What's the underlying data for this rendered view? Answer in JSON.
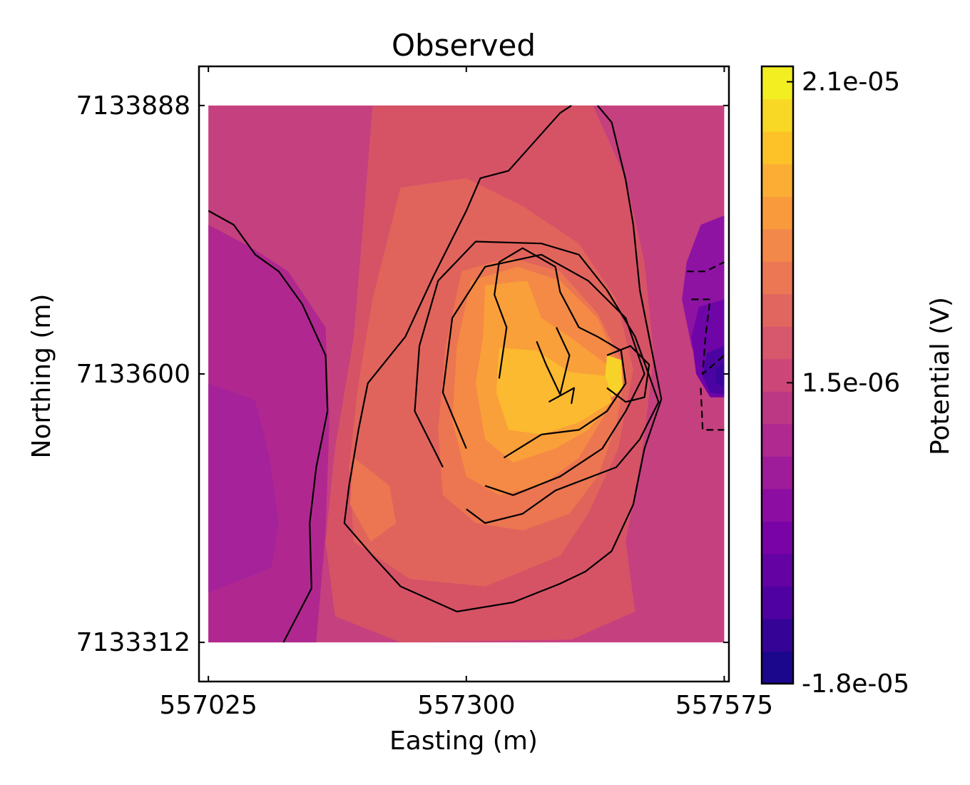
{
  "chart_data": {
    "type": "heatmap",
    "subtype": "filled-contour",
    "title": "Observed",
    "xlabel": "Easting (m)",
    "ylabel": "Northing (m)",
    "xlim": [
      557015,
      557580
    ],
    "ylim": [
      7133270,
      7133930
    ],
    "data_extent": {
      "x": [
        557025,
        557575
      ],
      "y": [
        7133312,
        7133888
      ]
    },
    "x_ticks": [
      {
        "value": 557025,
        "label": "557025"
      },
      {
        "value": 557300,
        "label": "557300"
      },
      {
        "value": 557575,
        "label": "557575"
      }
    ],
    "y_ticks": [
      {
        "value": 7133312,
        "label": "7133312"
      },
      {
        "value": 7133600,
        "label": "7133600"
      },
      {
        "value": 7133888,
        "label": "7133888"
      }
    ],
    "colorbar": {
      "label": "Potential (V)",
      "colormap": "plasma",
      "min": -1.8e-05,
      "max": 2.2e-05,
      "n_levels": 19,
      "ticks": [
        {
          "value": 2.1e-05,
          "label": "2.1e-05"
        },
        {
          "value": 1.5e-06,
          "label": "1.5e-06"
        },
        {
          "value": -1.8e-05,
          "label": "-1.8e-05"
        }
      ]
    },
    "background_level_color": "#c5407e",
    "filled_regions": [
      {
        "level": 0,
        "color": "#b0288f",
        "points": [
          [
            557025,
            7133760
          ],
          [
            557072,
            7133735
          ],
          [
            557110,
            7133710
          ],
          [
            557150,
            7133650
          ],
          [
            557154,
            7133550
          ],
          [
            557150,
            7133430
          ],
          [
            557140,
            7133312
          ],
          [
            557025,
            7133312
          ]
        ]
      },
      {
        "level": 0,
        "color": "#a6229a",
        "points": [
          [
            557025,
            7133590
          ],
          [
            557075,
            7133572
          ],
          [
            557090,
            7133512
          ],
          [
            557100,
            7133440
          ],
          [
            557092,
            7133392
          ],
          [
            557025,
            7133365
          ]
        ]
      },
      {
        "level": 3,
        "color": "#d65366",
        "points": [
          [
            557200,
            7133888
          ],
          [
            557435,
            7133888
          ],
          [
            557470,
            7133810
          ],
          [
            557490,
            7133720
          ],
          [
            557500,
            7133620
          ],
          [
            557488,
            7133520
          ],
          [
            557470,
            7133420
          ],
          [
            557480,
            7133345
          ],
          [
            557412,
            7133315
          ],
          [
            557230,
            7133312
          ],
          [
            557160,
            7133340
          ],
          [
            557150,
            7133420
          ],
          [
            557160,
            7133520
          ],
          [
            557180,
            7133640
          ],
          [
            557190,
            7133760
          ]
        ]
      },
      {
        "level": 4,
        "color": "#e1645c",
        "points": [
          [
            557230,
            7133800
          ],
          [
            557300,
            7133810
          ],
          [
            557360,
            7133780
          ],
          [
            557420,
            7133740
          ],
          [
            557460,
            7133680
          ],
          [
            557478,
            7133605
          ],
          [
            557462,
            7133520
          ],
          [
            557430,
            7133450
          ],
          [
            557400,
            7133405
          ],
          [
            557320,
            7133372
          ],
          [
            557240,
            7133380
          ],
          [
            557180,
            7133420
          ],
          [
            557175,
            7133500
          ],
          [
            557185,
            7133590
          ],
          [
            557200,
            7133680
          ]
        ]
      },
      {
        "level": 5,
        "color": "#eb7651",
        "points": [
          [
            557295,
            7133710
          ],
          [
            557345,
            7133725
          ],
          [
            557400,
            7133710
          ],
          [
            557440,
            7133665
          ],
          [
            557470,
            7133605
          ],
          [
            557460,
            7133545
          ],
          [
            557440,
            7133490
          ],
          [
            557410,
            7133450
          ],
          [
            557360,
            7133432
          ],
          [
            557310,
            7133440
          ],
          [
            557275,
            7133470
          ],
          [
            557270,
            7133540
          ],
          [
            557278,
            7133630
          ]
        ]
      },
      {
        "level": 5,
        "color": "#eb7651",
        "points": [
          [
            557180,
            7133510
          ],
          [
            557218,
            7133480
          ],
          [
            557225,
            7133440
          ],
          [
            557198,
            7133420
          ],
          [
            557176,
            7133460
          ]
        ]
      },
      {
        "level": 6,
        "color": "#f48a45",
        "points": [
          [
            557305,
            7133700
          ],
          [
            557355,
            7133715
          ],
          [
            557400,
            7133700
          ],
          [
            557440,
            7133660
          ],
          [
            557462,
            7133610
          ],
          [
            557450,
            7133560
          ],
          [
            557420,
            7133510
          ],
          [
            557380,
            7133480
          ],
          [
            557335,
            7133470
          ],
          [
            557300,
            7133490
          ],
          [
            557285,
            7133550
          ],
          [
            557290,
            7133630
          ]
        ]
      },
      {
        "level": 7,
        "color": "#f9a03a",
        "points": [
          [
            557320,
            7133695
          ],
          [
            557365,
            7133700
          ],
          [
            557380,
            7133660
          ],
          [
            557410,
            7133640
          ],
          [
            557450,
            7133610
          ],
          [
            557455,
            7133570
          ],
          [
            557430,
            7133540
          ],
          [
            557395,
            7133520
          ],
          [
            557350,
            7133505
          ],
          [
            557320,
            7133530
          ],
          [
            557310,
            7133590
          ],
          [
            557318,
            7133640
          ]
        ]
      },
      {
        "level": 8,
        "color": "#fbba30",
        "points": [
          [
            557335,
            7133628
          ],
          [
            557375,
            7133625
          ],
          [
            557410,
            7133602
          ],
          [
            557448,
            7133598
          ],
          [
            557455,
            7133570
          ],
          [
            557420,
            7133548
          ],
          [
            557380,
            7133535
          ],
          [
            557345,
            7133540
          ],
          [
            557332,
            7133580
          ]
        ]
      },
      {
        "level": 9,
        "color": "#f7d229",
        "points": [
          [
            557450,
            7133620
          ],
          [
            557465,
            7133615
          ],
          [
            557467,
            7133585
          ],
          [
            557455,
            7133575
          ],
          [
            557448,
            7133598
          ]
        ]
      },
      {
        "level": 1,
        "color": "#8e13a3",
        "points": [
          [
            557575,
            7133770
          ],
          [
            557550,
            7133760
          ],
          [
            557535,
            7133720
          ],
          [
            557530,
            7133680
          ],
          [
            557540,
            7133630
          ],
          [
            557555,
            7133590
          ],
          [
            557575,
            7133580
          ]
        ]
      },
      {
        "level": 0,
        "color": "#6f04a7",
        "points": [
          [
            557575,
            7133680
          ],
          [
            557548,
            7133672
          ],
          [
            557540,
            7133640
          ],
          [
            557545,
            7133600
          ],
          [
            557560,
            7133575
          ],
          [
            557575,
            7133575
          ]
        ]
      },
      {
        "level": 0,
        "color": "#4b03a1",
        "points": [
          [
            557575,
            7133630
          ],
          [
            557556,
            7133622
          ],
          [
            557552,
            7133598
          ],
          [
            557560,
            7133580
          ],
          [
            557575,
            7133578
          ]
        ]
      },
      {
        "level": 0,
        "color": "#3a049a",
        "points": [
          [
            557575,
            7133612
          ],
          [
            557566,
            7133605
          ],
          [
            557566,
            7133590
          ],
          [
            557575,
            7133586
          ]
        ]
      }
    ],
    "contour_lines": [
      {
        "style": "solid",
        "points": [
          [
            557025,
            7133775
          ],
          [
            557052,
            7133760
          ],
          [
            557075,
            7133728
          ],
          [
            557100,
            7133710
          ],
          [
            557125,
            7133675
          ],
          [
            557150,
            7133620
          ],
          [
            557152,
            7133560
          ],
          [
            557140,
            7133500
          ],
          [
            557133,
            7133440
          ],
          [
            557135,
            7133370
          ],
          [
            557105,
            7133312
          ]
        ]
      },
      {
        "style": "solid",
        "points": [
          [
            557175,
            7133480
          ],
          [
            557170,
            7133440
          ],
          [
            557200,
            7133405
          ],
          [
            557230,
            7133372
          ],
          [
            557290,
            7133345
          ],
          [
            557350,
            7133355
          ],
          [
            557400,
            7133375
          ],
          [
            557427,
            7133388
          ],
          [
            557455,
            7133410
          ],
          [
            557478,
            7133460
          ],
          [
            557490,
            7133520
          ],
          [
            557508,
            7133573
          ],
          [
            557485,
            7133690
          ],
          [
            557478,
            7133760
          ],
          [
            557470,
            7133808
          ],
          [
            557455,
            7133870
          ],
          [
            557440,
            7133888
          ]
        ]
      },
      {
        "style": "solid",
        "points": [
          [
            557175,
            7133480
          ],
          [
            557185,
            7133540
          ],
          [
            557195,
            7133590
          ],
          [
            557235,
            7133640
          ],
          [
            557265,
            7133705
          ],
          [
            557300,
            7133775
          ],
          [
            557315,
            7133810
          ],
          [
            557345,
            7133818
          ],
          [
            557400,
            7133880
          ],
          [
            557412,
            7133888
          ]
        ]
      },
      {
        "style": "solid",
        "points": [
          [
            557300,
            7133455
          ],
          [
            557320,
            7133440
          ],
          [
            557360,
            7133450
          ],
          [
            557395,
            7133475
          ],
          [
            557460,
            7133500
          ],
          [
            557485,
            7133530
          ],
          [
            557505,
            7133570
          ],
          [
            557480,
            7133640
          ],
          [
            557450,
            7133690
          ],
          [
            557420,
            7133728
          ],
          [
            557380,
            7133740
          ],
          [
            557310,
            7133742
          ],
          [
            557270,
            7133700
          ],
          [
            557250,
            7133630
          ],
          [
            557245,
            7133560
          ],
          [
            557275,
            7133500
          ]
        ]
      },
      {
        "style": "solid",
        "points": [
          [
            557320,
            7133480
          ],
          [
            557350,
            7133470
          ],
          [
            557400,
            7133490
          ],
          [
            557445,
            7133520
          ],
          [
            557470,
            7133560
          ],
          [
            557490,
            7133600
          ],
          [
            557470,
            7133660
          ],
          [
            557430,
            7133700
          ],
          [
            557380,
            7133728
          ],
          [
            557320,
            7133715
          ],
          [
            557285,
            7133660
          ],
          [
            557275,
            7133580
          ],
          [
            557300,
            7133520
          ]
        ]
      },
      {
        "style": "solid",
        "points": [
          [
            557340,
            7133510
          ],
          [
            557380,
            7133535
          ],
          [
            557420,
            7133540
          ],
          [
            557450,
            7133560
          ],
          [
            557470,
            7133590
          ],
          [
            557465,
            7133625
          ],
          [
            557440,
            7133640
          ],
          [
            557420,
            7133650
          ],
          [
            557400,
            7133688
          ],
          [
            557395,
            7133715
          ],
          [
            557360,
            7133735
          ],
          [
            557335,
            7133720
          ],
          [
            557330,
            7133685
          ],
          [
            557343,
            7133650
          ],
          [
            557335,
            7133595
          ]
        ]
      },
      {
        "style": "solid",
        "points": [
          [
            557375,
            7133635
          ],
          [
            557385,
            7133610
          ],
          [
            557400,
            7133578
          ],
          [
            557410,
            7133620
          ],
          [
            557396,
            7133650
          ]
        ]
      },
      {
        "style": "solid",
        "points": [
          [
            557450,
            7133585
          ],
          [
            557470,
            7133570
          ],
          [
            557490,
            7133575
          ],
          [
            557495,
            7133610
          ],
          [
            557475,
            7133630
          ],
          [
            557450,
            7133620
          ]
        ]
      },
      {
        "style": "solid",
        "points": [
          [
            557388,
            7133570
          ],
          [
            557415,
            7133585
          ],
          [
            557412,
            7133568
          ]
        ]
      },
      {
        "style": "dashed",
        "points": [
          [
            557535,
            7133710
          ],
          [
            557555,
            7133710
          ],
          [
            557575,
            7133720
          ]
        ]
      },
      {
        "style": "dashed",
        "points": [
          [
            557540,
            7133680
          ],
          [
            557560,
            7133680
          ],
          [
            557555,
            7133640
          ],
          [
            557552,
            7133600
          ],
          [
            557575,
            7133620
          ]
        ]
      },
      {
        "style": "dashed",
        "points": [
          [
            557550,
            7133585
          ],
          [
            557552,
            7133540
          ],
          [
            557575,
            7133540
          ]
        ]
      }
    ]
  }
}
